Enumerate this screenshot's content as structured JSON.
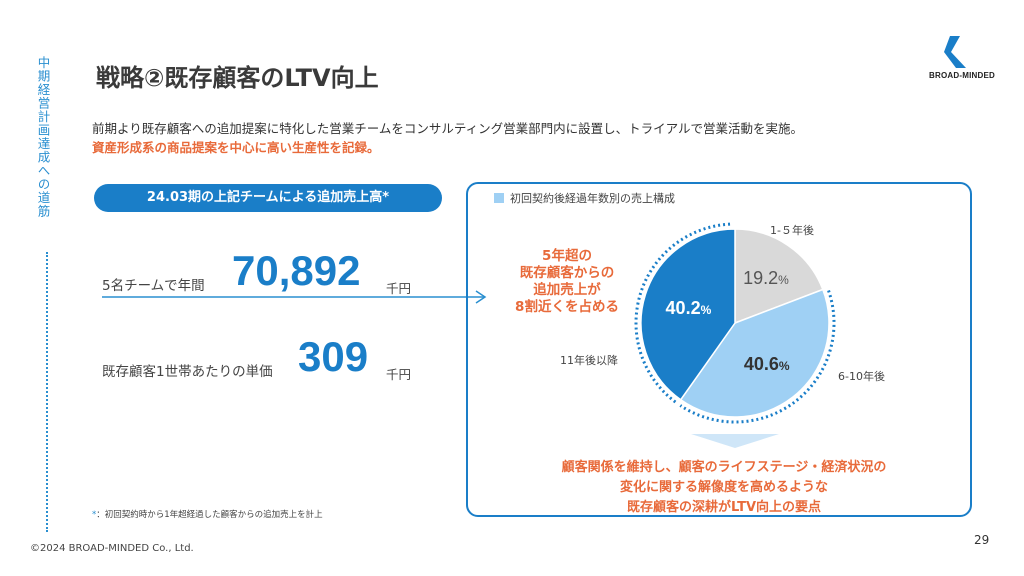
{
  "side": {
    "label": "中期経営計画達成への道筋"
  },
  "title": "戦略②既存顧客のLTV向上",
  "logo": {
    "text": "BROAD-MINDED"
  },
  "lead": {
    "line1": "前期より既存顧客への追加提案に特化した営業チームをコンサルティング営業部門内に設置し、トライアルで営業活動を実施。",
    "line2": "資産形成系の商品提案を中心に高い生産性を記録。"
  },
  "pill": "24.03期の上記チームによる追加売上高*",
  "stats": [
    {
      "label": "5名チームで年間",
      "value": "70,892",
      "unit": "千円"
    },
    {
      "label": "既存顧客1世帯あたりの単価",
      "value": "309",
      "unit": "千円"
    }
  ],
  "footnote": {
    "mark": "*",
    "text": "：初回契約時から1年超経過した顧客からの追加売上を計上"
  },
  "copyright": "©2024 BROAD-MINDED Co., Ltd.",
  "page_number": "29",
  "panel": {
    "legend": "初回契約後経過年数別の売上構成",
    "callout": [
      "5年超の",
      "既存顧客からの",
      "追加売上が",
      "8割近くを占める"
    ],
    "bottom_text": [
      "顧客関係を維持し、顧客のライフステージ・経済状況の",
      "変化に関する解像度を高めるような",
      "既存顧客の深耕がLTV向上の要点"
    ]
  },
  "colors": {
    "accent": "#1a7ec8",
    "orange": "#e86a3a",
    "light_blue": "#9fd0f4",
    "gray": "#d9d9d9"
  },
  "chart_data": {
    "type": "pie",
    "title": "初回契約後経過年数別の売上構成",
    "slices": [
      {
        "label": "1-５年後",
        "value": 19.2,
        "display": "19.2",
        "color": "#d9d9d9",
        "text_color": "#555555"
      },
      {
        "label": "6-10年後",
        "value": 40.6,
        "display": "40.6",
        "color": "#9fd0f4",
        "text_color": "#333333"
      },
      {
        "label": "11年後以降",
        "value": 40.2,
        "display": "40.2",
        "color": "#1a7ec8",
        "text_color": "#ffffff"
      }
    ],
    "unit": "%"
  }
}
